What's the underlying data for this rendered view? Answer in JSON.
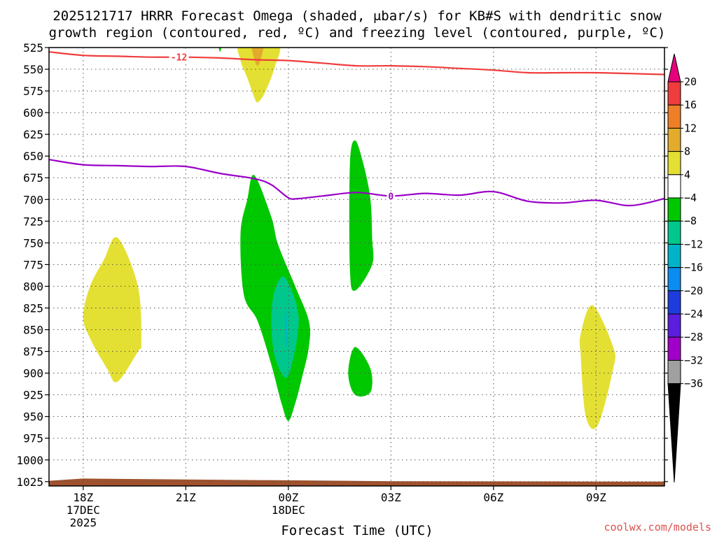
{
  "chart_data": {
    "type": "contour",
    "title_line1": "2025121717 HRRR Forecast Omega (shaded, μbar/s) for KB#S with dendritic snow",
    "title_line2": "growth region (contoured, red, ºC) and freezing level (contoured, purple, ºC)",
    "xlabel": "Forecast Time (UTC)",
    "x_range_hours": [
      -1,
      17
    ],
    "x_ticks": [
      {
        "h": 0,
        "label": "18Z",
        "sub1": "17DEC",
        "sub2": "2025"
      },
      {
        "h": 3,
        "label": "21Z",
        "sub1": "",
        "sub2": ""
      },
      {
        "h": 6,
        "label": "00Z",
        "sub1": "18DEC",
        "sub2": ""
      },
      {
        "h": 9,
        "label": "03Z",
        "sub1": "",
        "sub2": ""
      },
      {
        "h": 12,
        "label": "06Z",
        "sub1": "",
        "sub2": ""
      },
      {
        "h": 15,
        "label": "09Z",
        "sub1": "",
        "sub2": ""
      }
    ],
    "y_ticks_hpa": [
      "525",
      "550",
      "575",
      "600",
      "625",
      "650",
      "675",
      "700",
      "725",
      "750",
      "775",
      "800",
      "825",
      "850",
      "875",
      "900",
      "925",
      "950",
      "975",
      "1000",
      "1025"
    ],
    "p_top": 525,
    "p_bottom": 1030,
    "colorbar": {
      "labels": [
        "20",
        "16",
        "12",
        "8",
        "4",
        "−4",
        "−8",
        "−12",
        "−16",
        "−20",
        "−24",
        "−28",
        "−32",
        "−36"
      ],
      "colors": [
        "#e6007e",
        "#f03c3c",
        "#ee7f27",
        "#e3ab2c",
        "#e4e033",
        "#ffffff",
        "#00c800",
        "#00c88c",
        "#00b4c8",
        "#0a8cf0",
        "#1e3cdc",
        "#5a1edc",
        "#a000c8",
        "#a0a0a0",
        "#000000"
      ],
      "top_triangle_color": "#e6007e",
      "bottom_triangle_color": "#000000"
    },
    "contour_lines": [
      {
        "name": "dendritic-snow-growth-minus12",
        "label": "-12",
        "color": "#f03c3c",
        "label_h": 2.8,
        "points": [
          [
            -1,
            530
          ],
          [
            0,
            534
          ],
          [
            1,
            535
          ],
          [
            2,
            536
          ],
          [
            3,
            536
          ],
          [
            4,
            537
          ],
          [
            5,
            539
          ],
          [
            6,
            540
          ],
          [
            7,
            543
          ],
          [
            8,
            546
          ],
          [
            9,
            546
          ],
          [
            10,
            547
          ],
          [
            11,
            549
          ],
          [
            12,
            551
          ],
          [
            13,
            554
          ],
          [
            14,
            554
          ],
          [
            15,
            554
          ],
          [
            16,
            555
          ],
          [
            17,
            556
          ]
        ]
      },
      {
        "name": "freezing-level-0",
        "label": "0",
        "color": "#9b00c8",
        "label_h": 9.0,
        "points": [
          [
            -1,
            654
          ],
          [
            0,
            660
          ],
          [
            1,
            661
          ],
          [
            2,
            662
          ],
          [
            3,
            662
          ],
          [
            4,
            670
          ],
          [
            5,
            676
          ],
          [
            5.5,
            683
          ],
          [
            6,
            698
          ],
          [
            6.3,
            699
          ],
          [
            7,
            696
          ],
          [
            8,
            692
          ],
          [
            9,
            696
          ],
          [
            10,
            693
          ],
          [
            11,
            695
          ],
          [
            12,
            691
          ],
          [
            13,
            702
          ],
          [
            14,
            704
          ],
          [
            15,
            701
          ],
          [
            16,
            707
          ],
          [
            17,
            699
          ]
        ]
      }
    ],
    "shaded_regions": [
      {
        "name": "omega-yellow-upper",
        "color": "#e4e033",
        "points": [
          [
            4.6,
            520
          ],
          [
            4.6,
            540
          ],
          [
            4.8,
            560
          ],
          [
            5.0,
            582
          ],
          [
            5.1,
            588
          ],
          [
            5.3,
            578
          ],
          [
            5.6,
            548
          ],
          [
            5.7,
            520
          ]
        ]
      },
      {
        "name": "omega-orange-upper",
        "color": "#e3ab2c",
        "points": [
          [
            4.95,
            520
          ],
          [
            4.95,
            530
          ],
          [
            5.1,
            546
          ],
          [
            5.25,
            530
          ],
          [
            5.25,
            520
          ]
        ]
      },
      {
        "name": "omega-green-top-sliver",
        "color": "#00c800",
        "points": [
          [
            3.95,
            520
          ],
          [
            4.0,
            530
          ],
          [
            4.05,
            520
          ]
        ]
      },
      {
        "name": "omega-yellow-left",
        "color": "#e4e033",
        "points": [
          [
            1.0,
            744
          ],
          [
            1.6,
            800
          ],
          [
            1.7,
            865
          ],
          [
            1.6,
            875
          ],
          [
            1.0,
            910
          ],
          [
            0.7,
            895
          ],
          [
            0.2,
            860
          ],
          [
            0.0,
            835
          ],
          [
            0.2,
            800
          ],
          [
            0.6,
            770
          ]
        ]
      },
      {
        "name": "omega-green-center",
        "color": "#00c800",
        "points": [
          [
            5.0,
            672
          ],
          [
            5.5,
            720
          ],
          [
            5.7,
            752
          ],
          [
            6.2,
            800
          ],
          [
            6.6,
            840
          ],
          [
            6.6,
            870
          ],
          [
            6.4,
            905
          ],
          [
            6.2,
            935
          ],
          [
            6.0,
            955
          ],
          [
            5.8,
            935
          ],
          [
            5.5,
            890
          ],
          [
            5.1,
            840
          ],
          [
            4.7,
            810
          ],
          [
            4.6,
            740
          ],
          [
            4.8,
            700
          ]
        ]
      },
      {
        "name": "omega-teal-center",
        "color": "#00c88c",
        "points": [
          [
            5.9,
            790
          ],
          [
            6.3,
            835
          ],
          [
            6.1,
            890
          ],
          [
            5.9,
            905
          ],
          [
            5.6,
            880
          ],
          [
            5.5,
            840
          ],
          [
            5.6,
            805
          ]
        ]
      },
      {
        "name": "omega-blue-center",
        "color": "#00b4c8",
        "points": [
          [
            5.92,
            825
          ],
          [
            5.96,
            845
          ],
          [
            5.94,
            872
          ],
          [
            5.9,
            850
          ]
        ]
      },
      {
        "name": "omega-green-right-upper",
        "color": "#00c800",
        "points": [
          [
            7.95,
            632
          ],
          [
            8.2,
            660
          ],
          [
            8.4,
            700
          ],
          [
            8.45,
            745
          ],
          [
            8.45,
            775
          ],
          [
            7.95,
            805
          ],
          [
            7.8,
            780
          ],
          [
            7.8,
            660
          ]
        ]
      },
      {
        "name": "omega-green-right-lower",
        "color": "#00c800",
        "points": [
          [
            7.95,
            870
          ],
          [
            8.4,
            895
          ],
          [
            8.4,
            922
          ],
          [
            7.95,
            925
          ],
          [
            7.75,
            900
          ]
        ]
      },
      {
        "name": "omega-yellow-right",
        "color": "#e4e033",
        "points": [
          [
            14.9,
            822
          ],
          [
            15.5,
            870
          ],
          [
            15.5,
            895
          ],
          [
            15.05,
            960
          ],
          [
            14.7,
            950
          ],
          [
            14.55,
            880
          ],
          [
            14.55,
            855
          ]
        ]
      }
    ],
    "terrain_color": "#a0522d",
    "terrain": [
      [
        -1,
        1024
      ],
      [
        0,
        1021.5
      ],
      [
        3,
        1022.5
      ],
      [
        9,
        1024.5
      ],
      [
        17,
        1025
      ]
    ]
  },
  "footer": {
    "credit": "coolwx.com/models"
  }
}
